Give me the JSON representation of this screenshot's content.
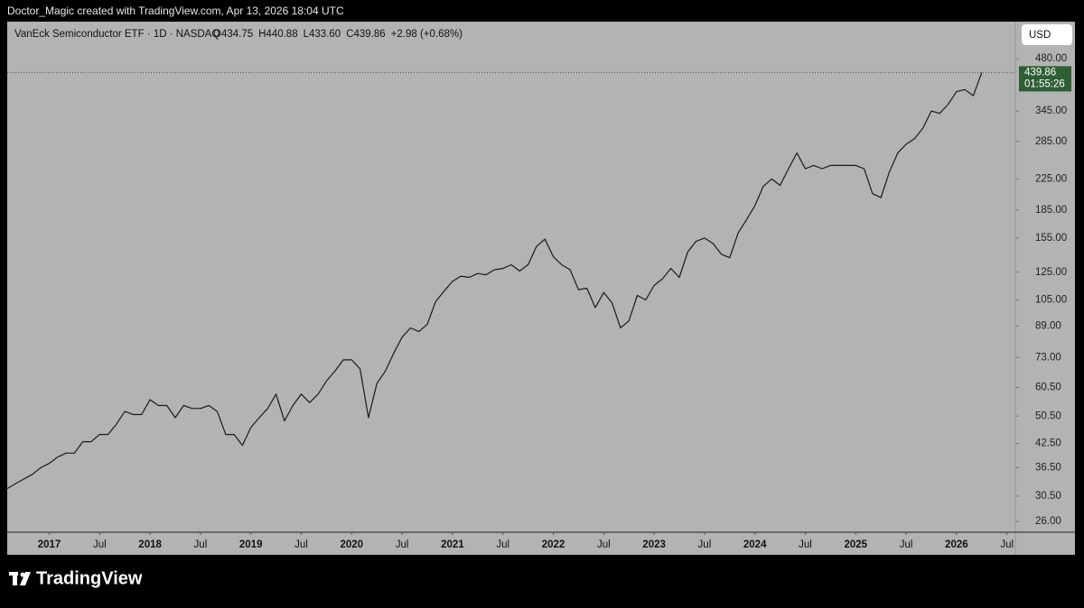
{
  "header": {
    "attribution": "Doctor_Magic created with TradingView.com, Apr 13, 2026 18:04 UTC"
  },
  "chart_data": {
    "type": "line",
    "title": "VanEck Semiconductor ETF · 1D · NASDAQ",
    "ohlc": [
      "O434.75",
      "H440.88",
      "L433.60",
      "C439.86",
      "+2.98 (+0.68%)"
    ],
    "currency": "USD",
    "color": "#1a1a1a",
    "log_scale": true,
    "x": [
      "2016-08",
      "2016-09",
      "2016-10",
      "2016-11",
      "2016-12",
      "2017-01",
      "2017-02",
      "2017-03",
      "2017-04",
      "2017-05",
      "2017-06",
      "2017-07",
      "2017-08",
      "2017-09",
      "2017-10",
      "2017-11",
      "2017-12",
      "2018-01",
      "2018-02",
      "2018-03",
      "2018-04",
      "2018-05",
      "2018-06",
      "2018-07",
      "2018-08",
      "2018-09",
      "2018-10",
      "2018-11",
      "2018-12",
      "2019-01",
      "2019-02",
      "2019-03",
      "2019-04",
      "2019-05",
      "2019-06",
      "2019-07",
      "2019-08",
      "2019-09",
      "2019-10",
      "2019-11",
      "2019-12",
      "2020-01",
      "2020-02",
      "2020-03",
      "2020-04",
      "2020-05",
      "2020-06",
      "2020-07",
      "2020-08",
      "2020-09",
      "2020-10",
      "2020-11",
      "2020-12",
      "2021-01",
      "2021-02",
      "2021-03",
      "2021-04",
      "2021-05",
      "2021-06",
      "2021-07",
      "2021-08",
      "2021-09",
      "2021-10",
      "2021-11",
      "2021-12",
      "2022-01",
      "2022-02",
      "2022-03",
      "2022-04",
      "2022-05",
      "2022-06",
      "2022-07",
      "2022-08",
      "2022-09",
      "2022-10",
      "2022-11",
      "2022-12",
      "2023-01",
      "2023-02",
      "2023-03",
      "2023-04",
      "2023-05",
      "2023-06",
      "2023-07",
      "2023-08",
      "2023-09",
      "2023-10",
      "2023-11",
      "2023-12",
      "2024-01",
      "2024-02",
      "2024-03",
      "2024-04",
      "2024-05",
      "2024-06",
      "2024-07",
      "2024-08",
      "2024-09",
      "2024-10",
      "2024-11",
      "2024-12",
      "2025-01",
      "2025-02",
      "2025-03",
      "2025-04",
      "2025-05",
      "2025-06",
      "2025-07",
      "2025-08",
      "2025-09",
      "2025-10",
      "2025-11",
      "2025-12",
      "2026-01",
      "2026-02",
      "2026-03",
      "2026-04"
    ],
    "values": [
      32,
      33,
      34,
      35,
      36.5,
      37.5,
      39,
      40,
      40,
      43,
      43,
      45,
      45,
      48,
      52,
      51,
      51,
      56,
      54,
      54,
      50,
      54,
      53,
      53,
      54,
      52,
      45,
      45,
      42,
      47,
      50,
      53,
      58,
      49,
      54,
      58,
      55,
      58,
      63,
      67,
      72,
      72,
      68,
      50,
      62,
      67,
      75,
      83,
      88,
      86,
      90,
      104,
      111,
      118,
      122,
      121,
      124,
      123,
      127,
      128,
      131,
      126,
      131,
      147,
      154,
      138,
      131,
      127,
      112,
      113,
      100,
      110,
      103,
      88,
      92,
      108,
      105,
      115,
      120,
      128,
      121,
      142,
      152,
      155,
      150,
      140,
      137,
      160,
      174,
      190,
      215,
      225,
      216,
      240,
      265,
      240,
      245,
      240,
      245,
      245,
      245,
      245,
      240,
      205,
      200,
      235,
      265,
      280,
      290,
      310,
      345,
      340,
      360,
      390,
      395,
      380,
      439.86
    ],
    "xlim": [
      "2016-08",
      "2026-08"
    ],
    "xticks": [
      {
        "value": "2017-01",
        "label": "2017"
      },
      {
        "value": "2017-07",
        "label": "Jul"
      },
      {
        "value": "2018-01",
        "label": "2018"
      },
      {
        "value": "2018-07",
        "label": "Jul"
      },
      {
        "value": "2019-01",
        "label": "2019"
      },
      {
        "value": "2019-07",
        "label": "Jul"
      },
      {
        "value": "2020-01",
        "label": "2020"
      },
      {
        "value": "2020-07",
        "label": "Jul"
      },
      {
        "value": "2021-01",
        "label": "2021"
      },
      {
        "value": "2021-07",
        "label": "Jul"
      },
      {
        "value": "2022-01",
        "label": "2022"
      },
      {
        "value": "2022-07",
        "label": "Jul"
      },
      {
        "value": "2023-01",
        "label": "2023"
      },
      {
        "value": "2023-07",
        "label": "Jul"
      },
      {
        "value": "2024-01",
        "label": "2024"
      },
      {
        "value": "2024-07",
        "label": "Jul"
      },
      {
        "value": "2025-01",
        "label": "2025"
      },
      {
        "value": "2025-07",
        "label": "Jul"
      },
      {
        "value": "2026-01",
        "label": "2026"
      },
      {
        "value": "2026-07",
        "label": "Jul"
      }
    ],
    "ylim": [
      24.3,
      606
    ],
    "yticks": [
      {
        "value": 480,
        "label": "480.00"
      },
      {
        "value": 345,
        "label": "345.00"
      },
      {
        "value": 285,
        "label": "285.00"
      },
      {
        "value": 225,
        "label": "225.00"
      },
      {
        "value": 185,
        "label": "185.00"
      },
      {
        "value": 155,
        "label": "155.00"
      },
      {
        "value": 125,
        "label": "125.00"
      },
      {
        "value": 105,
        "label": "105.00"
      },
      {
        "value": 89,
        "label": "89.00"
      },
      {
        "value": 73,
        "label": "73.00"
      },
      {
        "value": 60.5,
        "label": "60.50"
      },
      {
        "value": 50.5,
        "label": "50.50"
      },
      {
        "value": 42.5,
        "label": "42.50"
      },
      {
        "value": 36.5,
        "label": "36.50"
      },
      {
        "value": 30.5,
        "label": "30.50"
      },
      {
        "value": 26,
        "label": "26.00"
      }
    ],
    "last_price": {
      "value": 439.86,
      "label": "439.86",
      "countdown": "01:55:26",
      "color": "#2f5e35"
    }
  },
  "footer": {
    "brand": "TradingView"
  }
}
